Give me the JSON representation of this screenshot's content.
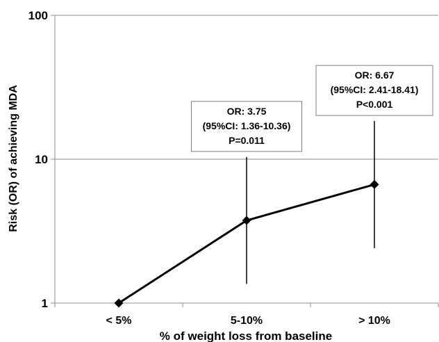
{
  "chart_data": {
    "type": "line",
    "categories": [
      "< 5%",
      "5-10%",
      "> 10%"
    ],
    "values": [
      1,
      3.75,
      6.67
    ],
    "error_bars": [
      {
        "lower": null,
        "upper": null
      },
      {
        "lower": 1.36,
        "upper": 10.36
      },
      {
        "lower": 2.41,
        "upper": 18.41
      }
    ],
    "xlabel": "% of weight loss from baseline",
    "ylabel": "Risk (OR) of achieving MDA",
    "y_scale": "log",
    "ylim": [
      1,
      100
    ],
    "y_ticks": [
      "1",
      "10",
      "100"
    ],
    "grid": "horizontal",
    "legend": "none",
    "line_color": "#000000",
    "marker": "diamond",
    "annotations": [
      {
        "category": "5-10%",
        "lines": [
          "OR: 3.75",
          "(95%CI: 1.36-10.36)",
          "P=0.011"
        ]
      },
      {
        "category": "> 10%",
        "lines": [
          "OR: 6.67",
          "(95%CI: 2.41-18.41)",
          "P<0.001"
        ]
      }
    ]
  }
}
